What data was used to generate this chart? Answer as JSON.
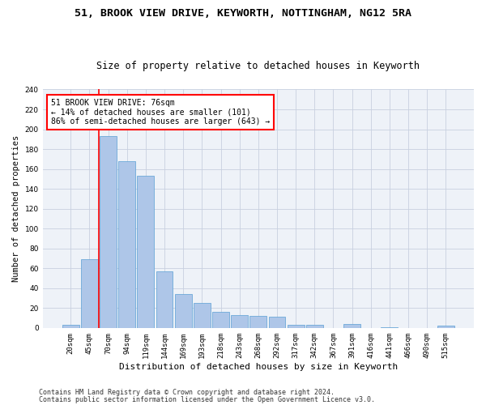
{
  "title1": "51, BROOK VIEW DRIVE, KEYWORTH, NOTTINGHAM, NG12 5RA",
  "title2": "Size of property relative to detached houses in Keyworth",
  "xlabel": "Distribution of detached houses by size in Keyworth",
  "ylabel": "Number of detached properties",
  "bar_labels": [
    "20sqm",
    "45sqm",
    "70sqm",
    "94sqm",
    "119sqm",
    "144sqm",
    "169sqm",
    "193sqm",
    "218sqm",
    "243sqm",
    "268sqm",
    "292sqm",
    "317sqm",
    "342sqm",
    "367sqm",
    "391sqm",
    "416sqm",
    "441sqm",
    "466sqm",
    "490sqm",
    "515sqm"
  ],
  "bar_values": [
    3,
    69,
    193,
    168,
    153,
    57,
    34,
    25,
    16,
    13,
    12,
    11,
    3,
    3,
    0,
    4,
    0,
    1,
    0,
    0,
    2
  ],
  "bar_color": "#aec6e8",
  "bar_edge_color": "#5a9fd4",
  "red_line_index": 2,
  "annotation_text": "51 BROOK VIEW DRIVE: 76sqm\n← 14% of detached houses are smaller (101)\n86% of semi-detached houses are larger (643) →",
  "annotation_box_color": "white",
  "annotation_box_edge": "red",
  "footer1": "Contains HM Land Registry data © Crown copyright and database right 2024.",
  "footer2": "Contains public sector information licensed under the Open Government Licence v3.0.",
  "background_color": "#eef2f8",
  "grid_color": "#c8d0e0",
  "ylim": [
    0,
    240
  ],
  "title1_fontsize": 9.5,
  "title2_fontsize": 8.5,
  "xlabel_fontsize": 8,
  "ylabel_fontsize": 7.5,
  "tick_fontsize": 6.5,
  "ann_fontsize": 7,
  "footer_fontsize": 6
}
